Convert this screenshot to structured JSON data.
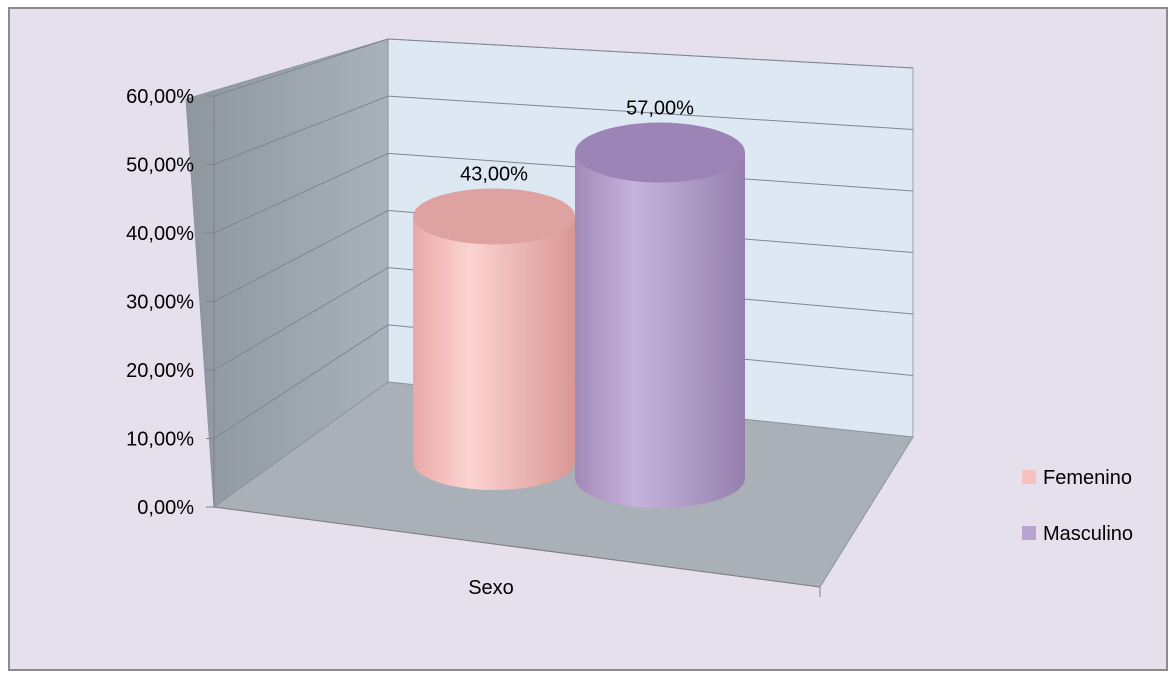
{
  "chart_data": {
    "type": "bar",
    "style": "3d-cylinder",
    "categories": [
      "Sexo"
    ],
    "series": [
      {
        "name": "Femenino",
        "values": [
          0.43
        ],
        "label": "43,00%",
        "color": "#f5c2c0"
      },
      {
        "name": "Masculino",
        "values": [
          0.57
        ],
        "label": "57,00%",
        "color": "#b8a3cf"
      }
    ],
    "yticks": [
      {
        "value": 0.0,
        "label": "0,00%"
      },
      {
        "value": 0.1,
        "label": "10,00%"
      },
      {
        "value": 0.2,
        "label": "20,00%"
      },
      {
        "value": 0.3,
        "label": "30,00%"
      },
      {
        "value": 0.4,
        "label": "40,00%"
      },
      {
        "value": 0.5,
        "label": "50,00%"
      },
      {
        "value": 0.6,
        "label": "60,00%"
      }
    ],
    "ylim": [
      0,
      0.6
    ],
    "grid": true,
    "legend": "right",
    "colors": {
      "background": "#e6dfec",
      "back_wall": "#dde8f3",
      "side_wall": "#9ea7b0",
      "floor": "#a9b0b7"
    }
  }
}
